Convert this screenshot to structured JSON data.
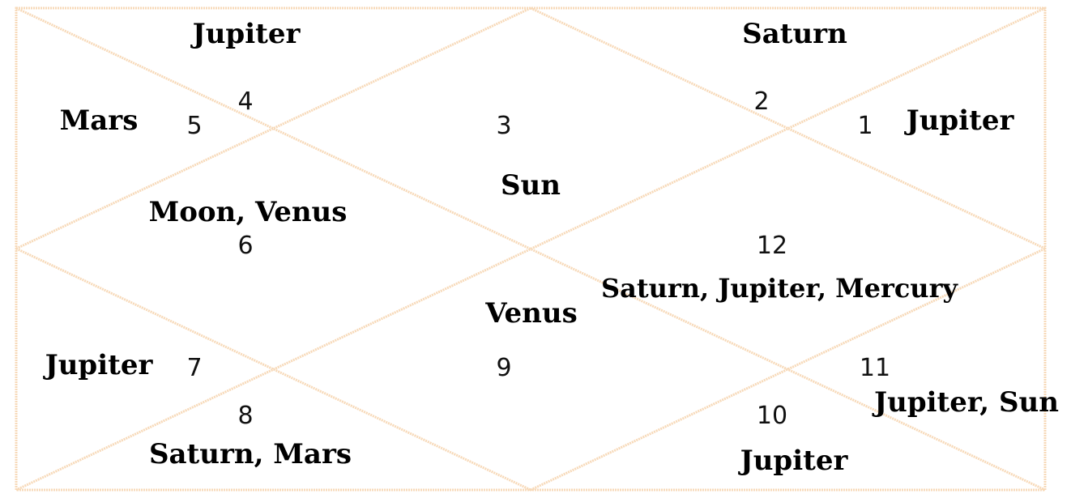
{
  "houses": [
    {
      "number": "1",
      "planets": "Jupiter"
    },
    {
      "number": "2",
      "planets": "Saturn"
    },
    {
      "number": "3",
      "planets": "Sun"
    },
    {
      "number": "4",
      "planets": "Jupiter"
    },
    {
      "number": "5",
      "planets": "Mars"
    },
    {
      "number": "6",
      "planets": "Moon, Venus"
    },
    {
      "number": "7",
      "planets": "Jupiter"
    },
    {
      "number": "8",
      "planets": "Saturn, Mars"
    },
    {
      "number": "9",
      "planets": "Venus"
    },
    {
      "number": "10",
      "planets": "Jupiter"
    },
    {
      "number": "11",
      "planets": "Jupiter, Sun"
    },
    {
      "number": "12",
      "planets": "Saturn, Jupiter, Mercury"
    }
  ],
  "colors": {
    "lines": "#f7d9b8",
    "text": "#000000"
  }
}
